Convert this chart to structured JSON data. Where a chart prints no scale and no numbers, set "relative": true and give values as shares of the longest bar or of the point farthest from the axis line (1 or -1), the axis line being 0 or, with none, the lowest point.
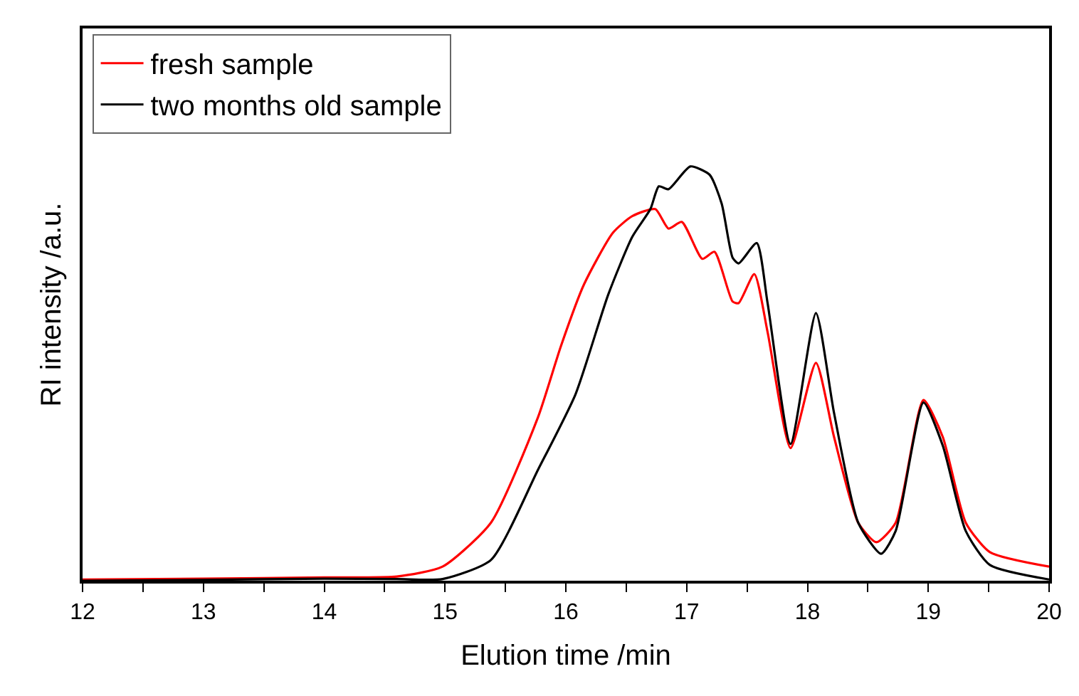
{
  "chart_data": {
    "type": "line",
    "relative": true,
    "xlabel": "Elution time /min",
    "ylabel": "RI intensity /a.u.",
    "xlim": [
      12,
      20
    ],
    "xticks": [
      12,
      {
        "value": 12.5,
        "label": null
      },
      13,
      {
        "value": 13.5,
        "label": null
      },
      14,
      {
        "value": 14.5,
        "label": null
      },
      15,
      {
        "value": 15.5,
        "label": null
      },
      16,
      {
        "value": 16.5,
        "label": null
      },
      17,
      {
        "value": 17.5,
        "label": null
      },
      18,
      {
        "value": 18.5,
        "label": null
      },
      19,
      {
        "value": 19.5,
        "label": null
      },
      20
    ],
    "legend": "top left",
    "marker": "none",
    "line_style": "solid",
    "series": [
      {
        "name": "fresh sample",
        "color": "#ff0000",
        "x": [
          12,
          13,
          14,
          14.6,
          14.98,
          15.38,
          15.77,
          15.96,
          16.15,
          16.39,
          16.55,
          16.74,
          16.85,
          16.96,
          17.13,
          17.23,
          17.38,
          17.43,
          17.56,
          17.67,
          17.86,
          18.07,
          18.22,
          18.42,
          18.57,
          18.73,
          18.96,
          19.12,
          19.31,
          19.51,
          20
        ],
        "values": [
          0.003,
          0.005,
          0.008,
          0.01,
          0.034,
          0.14,
          0.395,
          0.567,
          0.715,
          0.84,
          0.88,
          0.897,
          0.85,
          0.866,
          0.777,
          0.794,
          0.674,
          0.67,
          0.74,
          0.6,
          0.32,
          0.526,
          0.347,
          0.14,
          0.093,
          0.14,
          0.436,
          0.347,
          0.14,
          0.069,
          0.034
        ]
      },
      {
        "name": "two months old sample",
        "color": "#000000",
        "x": [
          12,
          13,
          14,
          14.6,
          14.98,
          15.38,
          15.77,
          16.08,
          16.35,
          16.55,
          16.7,
          16.77,
          16.85,
          17.03,
          17.19,
          17.29,
          17.38,
          17.43,
          17.58,
          17.67,
          17.86,
          18.07,
          18.22,
          18.42,
          18.61,
          18.73,
          18.96,
          19.12,
          19.31,
          19.51,
          20
        ],
        "values": [
          0.0,
          0.002,
          0.005,
          0.004,
          0.004,
          0.05,
          0.268,
          0.45,
          0.69,
          0.83,
          0.897,
          0.952,
          0.945,
          1.0,
          0.98,
          0.91,
          0.78,
          0.766,
          0.815,
          0.67,
          0.33,
          0.646,
          0.405,
          0.14,
          0.065,
          0.12,
          0.43,
          0.326,
          0.12,
          0.038,
          0.003
        ]
      }
    ]
  }
}
